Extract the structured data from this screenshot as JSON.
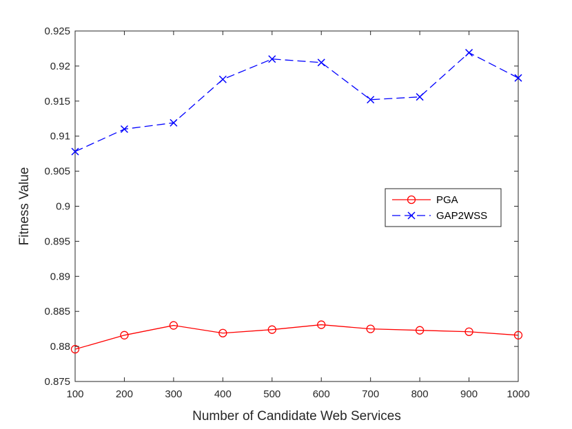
{
  "chart_data": {
    "type": "line",
    "xlabel": "Number of Candidate Web Services",
    "ylabel": "Fitness Value",
    "xlim": [
      100,
      1000
    ],
    "ylim": [
      0.875,
      0.925
    ],
    "x": [
      100,
      200,
      300,
      400,
      500,
      600,
      700,
      800,
      900,
      1000
    ],
    "x_tick_labels": [
      "100",
      "200",
      "300",
      "400",
      "500",
      "600",
      "700",
      "800",
      "900",
      "1000"
    ],
    "y_ticks": [
      0.875,
      0.88,
      0.885,
      0.89,
      0.895,
      0.9,
      0.905,
      0.91,
      0.915,
      0.92,
      0.925
    ],
    "y_tick_labels": [
      "0.875",
      "0.88",
      "0.885",
      "0.89",
      "0.895",
      "0.9",
      "0.905",
      "0.91",
      "0.915",
      "0.92",
      "0.925"
    ],
    "grid": false,
    "legend_position": "right",
    "series": [
      {
        "name": "PGA",
        "color": "#ff0000",
        "marker": "circle",
        "line_style": "solid",
        "values": [
          0.8796,
          0.8816,
          0.883,
          0.8819,
          0.8824,
          0.8831,
          0.8825,
          0.8823,
          0.8821,
          0.8816
        ]
      },
      {
        "name": "GAP2WSS",
        "color": "#0000ff",
        "marker": "x",
        "line_style": "dashed",
        "values": [
          0.9078,
          0.911,
          0.9119,
          0.9181,
          0.921,
          0.9205,
          0.9152,
          0.9156,
          0.9219,
          0.9183
        ]
      }
    ]
  }
}
